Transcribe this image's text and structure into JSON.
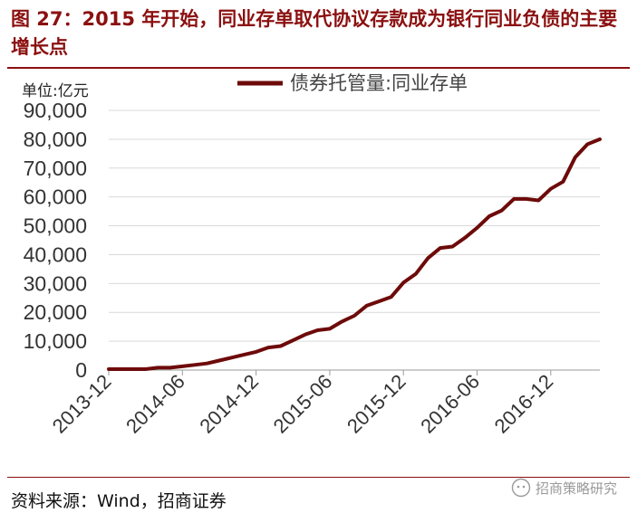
{
  "figure": {
    "title": "图 27：2015 年开始，同业存单取代协议存款成为银行同业负债的主要增长点",
    "source": "资料来源：Wind，招商证券",
    "watermark": "招商策略研究"
  },
  "colors": {
    "accent": "#8b1010",
    "line": "#6e0a0a",
    "grid": "#d9d9d9"
  },
  "chart_data": {
    "type": "line",
    "ylabel": "单位:亿元",
    "legend_position": "top-right",
    "grid": true,
    "ylim": [
      0,
      90000
    ],
    "yticks": [
      0,
      10000,
      20000,
      30000,
      40000,
      50000,
      60000,
      70000,
      80000,
      90000
    ],
    "ytick_labels": [
      "0",
      "10,000",
      "20,000",
      "30,000",
      "40,000",
      "50,000",
      "60,000",
      "70,000",
      "80,000",
      "90,000"
    ],
    "xtick_labels": [
      "2013-12",
      "2014-06",
      "2014-12",
      "2015-06",
      "2015-12",
      "2016-06",
      "2016-12"
    ],
    "series": [
      {
        "name": "债券托管量:同业存单",
        "x": [
          "2013-12",
          "2014-01",
          "2014-02",
          "2014-03",
          "2014-04",
          "2014-05",
          "2014-06",
          "2014-07",
          "2014-08",
          "2014-09",
          "2014-10",
          "2014-11",
          "2014-12",
          "2015-01",
          "2015-02",
          "2015-03",
          "2015-04",
          "2015-05",
          "2015-06",
          "2015-07",
          "2015-08",
          "2015-09",
          "2015-10",
          "2015-11",
          "2015-12",
          "2016-01",
          "2016-02",
          "2016-03",
          "2016-04",
          "2016-05",
          "2016-06",
          "2016-07",
          "2016-08",
          "2016-09",
          "2016-10",
          "2016-11",
          "2016-12",
          "2017-01",
          "2017-02",
          "2017-03",
          "2017-04"
        ],
        "values": [
          300,
          300,
          300,
          300,
          800,
          800,
          1300,
          1800,
          2300,
          3300,
          4300,
          5300,
          6300,
          7800,
          8300,
          10300,
          12300,
          13800,
          14300,
          16800,
          18800,
          22300,
          23800,
          25300,
          30300,
          33300,
          38800,
          42300,
          42800,
          45800,
          49300,
          53300,
          55300,
          59300,
          59300,
          58800,
          62800,
          65300,
          73800,
          78300,
          80000
        ]
      }
    ]
  }
}
